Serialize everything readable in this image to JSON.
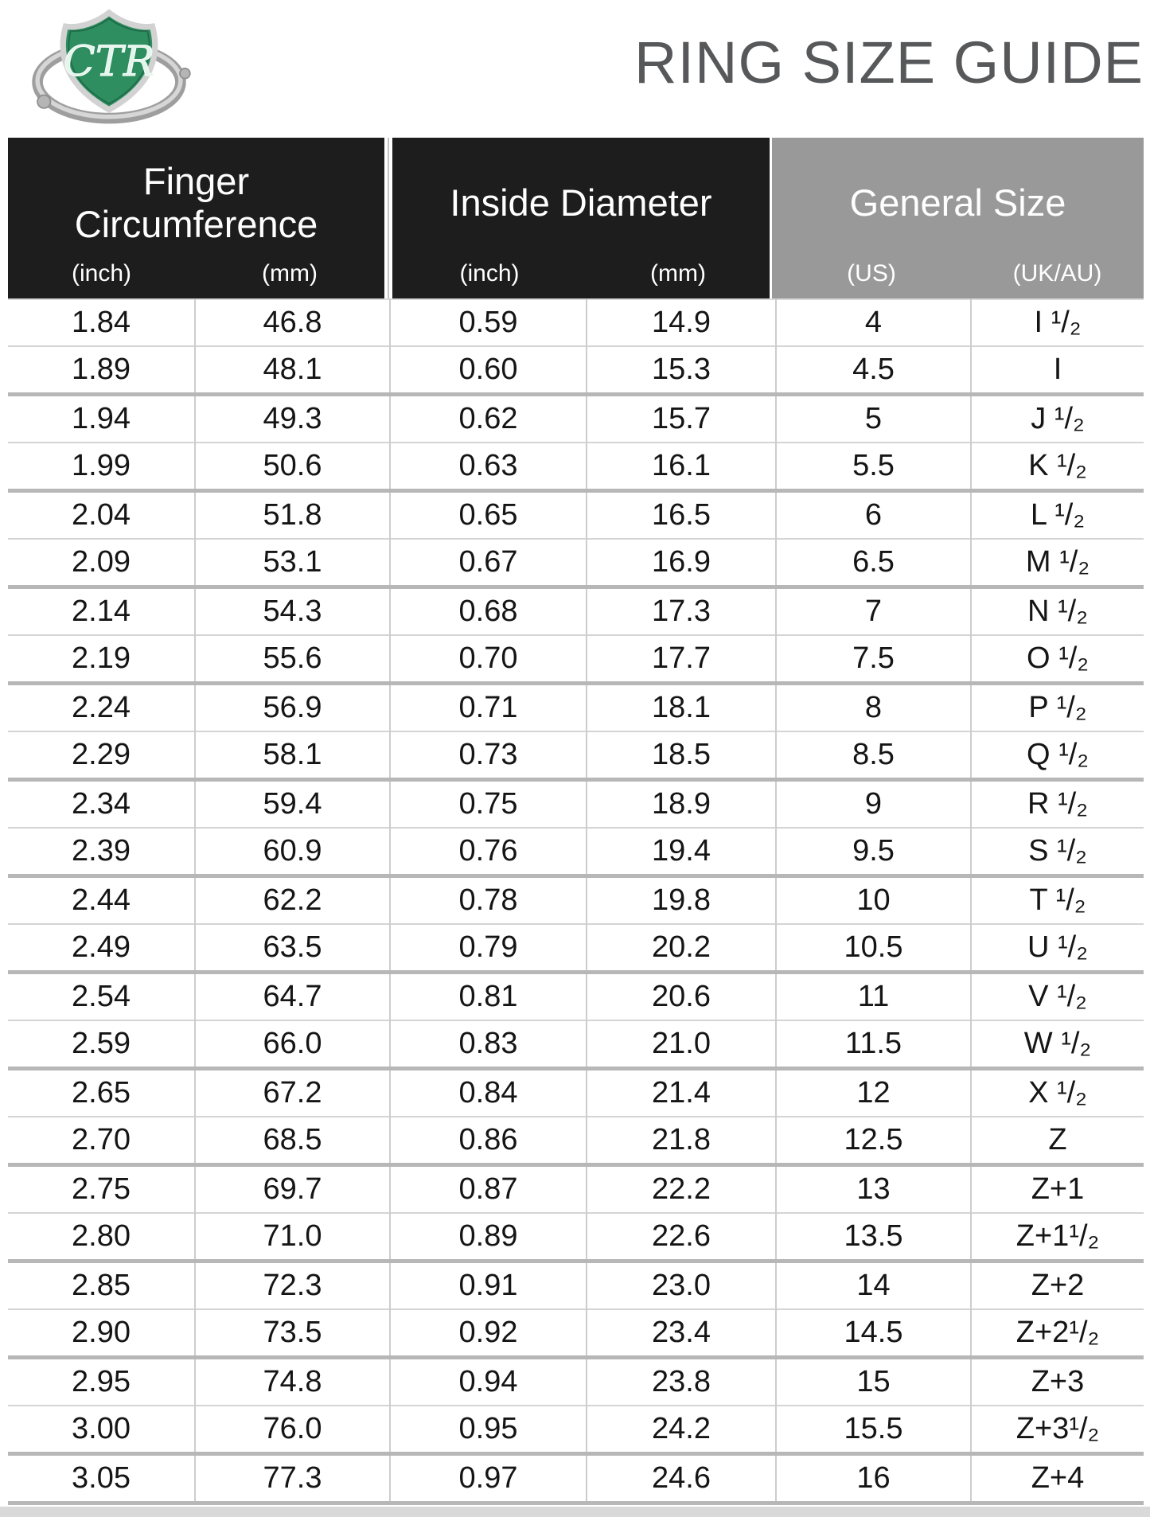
{
  "title": "RING SIZE GUIDE",
  "logo": {
    "shield_text": "CTR"
  },
  "colors": {
    "header_black": "#1d1d1d",
    "header_gray": "#999999",
    "title_gray": "#57585a",
    "shield_green": "#2e8e60",
    "ring_silver": "#b9b9b9",
    "thin_rule": "#d4d4d4",
    "thick_rule": "#b7b7b7",
    "bottom_strip": "#d9d9d9"
  },
  "table": {
    "groups": [
      {
        "label": "Finger\nCircumference",
        "sub": [
          "(inch)",
          "(mm)"
        ]
      },
      {
        "label": "Inside Diameter",
        "sub": [
          "(inch)",
          "(mm)"
        ]
      },
      {
        "label": "General Size",
        "sub": [
          "(US)",
          "(UK/AU)"
        ]
      }
    ],
    "rows": [
      [
        "1.84",
        "46.8",
        "0.59",
        "14.9",
        "4",
        "I ¹/₂"
      ],
      [
        "1.89",
        "48.1",
        "0.60",
        "15.3",
        "4.5",
        "I"
      ],
      [
        "1.94",
        "49.3",
        "0.62",
        "15.7",
        "5",
        "J ¹/₂"
      ],
      [
        "1.99",
        "50.6",
        "0.63",
        "16.1",
        "5.5",
        "K ¹/₂"
      ],
      [
        "2.04",
        "51.8",
        "0.65",
        "16.5",
        "6",
        "L ¹/₂"
      ],
      [
        "2.09",
        "53.1",
        "0.67",
        "16.9",
        "6.5",
        "M ¹/₂"
      ],
      [
        "2.14",
        "54.3",
        "0.68",
        "17.3",
        "7",
        "N ¹/₂"
      ],
      [
        "2.19",
        "55.6",
        "0.70",
        "17.7",
        "7.5",
        "O ¹/₂"
      ],
      [
        "2.24",
        "56.9",
        "0.71",
        "18.1",
        "8",
        "P ¹/₂"
      ],
      [
        "2.29",
        "58.1",
        "0.73",
        "18.5",
        "8.5",
        "Q ¹/₂"
      ],
      [
        "2.34",
        "59.4",
        "0.75",
        "18.9",
        "9",
        "R ¹/₂"
      ],
      [
        "2.39",
        "60.9",
        "0.76",
        "19.4",
        "9.5",
        "S ¹/₂"
      ],
      [
        "2.44",
        "62.2",
        "0.78",
        "19.8",
        "10",
        "T ¹/₂"
      ],
      [
        "2.49",
        "63.5",
        "0.79",
        "20.2",
        "10.5",
        "U ¹/₂"
      ],
      [
        "2.54",
        "64.7",
        "0.81",
        "20.6",
        "11",
        "V ¹/₂"
      ],
      [
        "2.59",
        "66.0",
        "0.83",
        "21.0",
        "11.5",
        "W ¹/₂"
      ],
      [
        "2.65",
        "67.2",
        "0.84",
        "21.4",
        "12",
        "X ¹/₂"
      ],
      [
        "2.70",
        "68.5",
        "0.86",
        "21.8",
        "12.5",
        "Z"
      ],
      [
        "2.75",
        "69.7",
        "0.87",
        "22.2",
        "13",
        "Z+1"
      ],
      [
        "2.80",
        "71.0",
        "0.89",
        "22.6",
        "13.5",
        "Z+1¹/₂"
      ],
      [
        "2.85",
        "72.3",
        "0.91",
        "23.0",
        "14",
        "Z+2"
      ],
      [
        "2.90",
        "73.5",
        "0.92",
        "23.4",
        "14.5",
        "Z+2¹/₂"
      ],
      [
        "2.95",
        "74.8",
        "0.94",
        "23.8",
        "15",
        "Z+3"
      ],
      [
        "3.00",
        "76.0",
        "0.95",
        "24.2",
        "15.5",
        "Z+3¹/₂"
      ],
      [
        "3.05",
        "77.3",
        "0.97",
        "24.6",
        "16",
        "Z+4"
      ]
    ]
  }
}
